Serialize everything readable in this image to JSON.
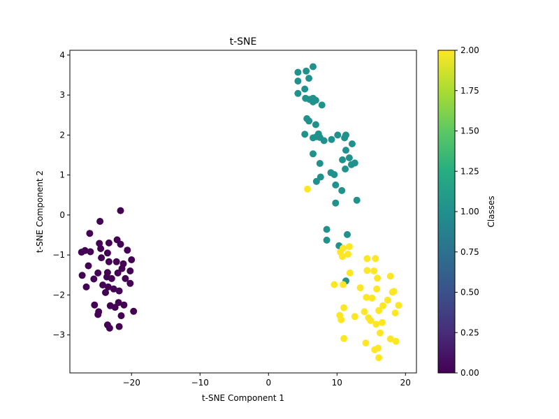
{
  "chart_data": {
    "type": "scatter",
    "title": "t-SNE",
    "xlabel": "t-SNE Component 1",
    "ylabel": "t-SNE Component 2",
    "xlim": [
      -29,
      21.6
    ],
    "ylim": [
      -3.95,
      4.12
    ],
    "xticks": [
      -20,
      -10,
      0,
      10,
      20
    ],
    "xtick_labels": [
      "−20",
      "−10",
      "0",
      "10",
      "20"
    ],
    "yticks": [
      -3,
      -2,
      -1,
      0,
      1,
      2,
      3,
      4
    ],
    "ytick_labels": [
      "−3",
      "−2",
      "−1",
      "0",
      "1",
      "2",
      "3",
      "4"
    ],
    "grid": false,
    "colormap": "viridis",
    "colorbar": {
      "label": "Classes",
      "range": [
        0.0,
        2.0
      ],
      "ticks": [
        0.0,
        0.25,
        0.5,
        0.75,
        1.0,
        1.25,
        1.5,
        1.75,
        2.0
      ],
      "tick_labels": [
        "0.00",
        "0.25",
        "0.50",
        "0.75",
        "1.00",
        "1.25",
        "1.50",
        "1.75",
        "2.00"
      ]
    },
    "class_colors": {
      "0": "#440154",
      "1": "#21918c",
      "2": "#fde725"
    },
    "points": [
      {
        "x": -24.6,
        "y": -0.16,
        "c": 0
      },
      {
        "x": -21.6,
        "y": 0.11,
        "c": 0
      },
      {
        "x": -26.1,
        "y": -0.46,
        "c": 0
      },
      {
        "x": -27.3,
        "y": -0.93,
        "c": 0
      },
      {
        "x": -26.8,
        "y": -0.89,
        "c": 0
      },
      {
        "x": -26.0,
        "y": -0.92,
        "c": 0
      },
      {
        "x": -24.7,
        "y": -0.71,
        "c": 0
      },
      {
        "x": -24.5,
        "y": -0.84,
        "c": 0
      },
      {
        "x": -23.3,
        "y": -0.7,
        "c": 0
      },
      {
        "x": -22.1,
        "y": -0.62,
        "c": 0
      },
      {
        "x": -21.6,
        "y": -0.73,
        "c": 0
      },
      {
        "x": -20.6,
        "y": -0.88,
        "c": 0
      },
      {
        "x": -23.5,
        "y": -0.95,
        "c": 0
      },
      {
        "x": -24.4,
        "y": -1.07,
        "c": 0
      },
      {
        "x": -23.3,
        "y": -1.17,
        "c": 0
      },
      {
        "x": -22.2,
        "y": -1.17,
        "c": 0
      },
      {
        "x": -21.2,
        "y": -1.22,
        "c": 0
      },
      {
        "x": -20.0,
        "y": -1.12,
        "c": 0
      },
      {
        "x": -26.3,
        "y": -1.27,
        "c": 0
      },
      {
        "x": -27.2,
        "y": -1.51,
        "c": 0
      },
      {
        "x": -24.9,
        "y": -1.45,
        "c": 0
      },
      {
        "x": -23.5,
        "y": -1.44,
        "c": 0
      },
      {
        "x": -22.0,
        "y": -1.45,
        "c": 0
      },
      {
        "x": -21.4,
        "y": -1.34,
        "c": 0
      },
      {
        "x": -20.2,
        "y": -1.4,
        "c": 0
      },
      {
        "x": -25.5,
        "y": -1.6,
        "c": 0
      },
      {
        "x": -23.6,
        "y": -1.55,
        "c": 0
      },
      {
        "x": -22.9,
        "y": -1.59,
        "c": 0
      },
      {
        "x": -20.9,
        "y": -1.59,
        "c": 0
      },
      {
        "x": -26.6,
        "y": -1.8,
        "c": 0
      },
      {
        "x": -24.2,
        "y": -1.75,
        "c": 0
      },
      {
        "x": -23.4,
        "y": -1.8,
        "c": 0
      },
      {
        "x": -22.6,
        "y": -1.85,
        "c": 0
      },
      {
        "x": -20.2,
        "y": -1.71,
        "c": 0
      },
      {
        "x": -23.8,
        "y": -1.94,
        "c": 0
      },
      {
        "x": -21.8,
        "y": -1.9,
        "c": 0
      },
      {
        "x": -25.4,
        "y": -2.25,
        "c": 0
      },
      {
        "x": -23.1,
        "y": -2.27,
        "c": 0
      },
      {
        "x": -22.4,
        "y": -2.31,
        "c": 0
      },
      {
        "x": -21.9,
        "y": -2.19,
        "c": 0
      },
      {
        "x": -21.1,
        "y": -2.25,
        "c": 0
      },
      {
        "x": -24.8,
        "y": -2.42,
        "c": 0
      },
      {
        "x": -24.9,
        "y": -2.49,
        "c": 0
      },
      {
        "x": -21.5,
        "y": -2.52,
        "c": 0
      },
      {
        "x": -19.7,
        "y": -2.41,
        "c": 0
      },
      {
        "x": -23.5,
        "y": -2.75,
        "c": 0
      },
      {
        "x": -23.2,
        "y": -2.83,
        "c": 0
      },
      {
        "x": -21.8,
        "y": -2.79,
        "c": 0
      },
      {
        "x": 6.5,
        "y": 3.71,
        "c": 1
      },
      {
        "x": 4.3,
        "y": 3.57,
        "c": 1
      },
      {
        "x": 5.5,
        "y": 3.6,
        "c": 1
      },
      {
        "x": 4.3,
        "y": 3.35,
        "c": 1
      },
      {
        "x": 5.9,
        "y": 3.42,
        "c": 1
      },
      {
        "x": 5.3,
        "y": 3.15,
        "c": 1
      },
      {
        "x": 4.3,
        "y": 3.04,
        "c": 1
      },
      {
        "x": 5.4,
        "y": 2.92,
        "c": 1
      },
      {
        "x": 6.0,
        "y": 2.89,
        "c": 1
      },
      {
        "x": 6.5,
        "y": 2.92,
        "c": 1
      },
      {
        "x": 6.5,
        "y": 2.83,
        "c": 1
      },
      {
        "x": 6.9,
        "y": 2.87,
        "c": 1
      },
      {
        "x": 7.8,
        "y": 2.75,
        "c": 1
      },
      {
        "x": 5.6,
        "y": 2.41,
        "c": 1
      },
      {
        "x": 5.9,
        "y": 2.35,
        "c": 1
      },
      {
        "x": 6.9,
        "y": 2.26,
        "c": 1
      },
      {
        "x": 5.3,
        "y": 2.02,
        "c": 1
      },
      {
        "x": 6.5,
        "y": 1.93,
        "c": 1
      },
      {
        "x": 7.0,
        "y": 1.96,
        "c": 1
      },
      {
        "x": 7.3,
        "y": 2.03,
        "c": 1
      },
      {
        "x": 7.5,
        "y": 1.94,
        "c": 1
      },
      {
        "x": 8.1,
        "y": 1.86,
        "c": 1
      },
      {
        "x": 9.2,
        "y": 1.89,
        "c": 1
      },
      {
        "x": 10.1,
        "y": 2.0,
        "c": 1
      },
      {
        "x": 11.1,
        "y": 1.93,
        "c": 1
      },
      {
        "x": 11.3,
        "y": 2.0,
        "c": 1
      },
      {
        "x": 12.2,
        "y": 1.78,
        "c": 1
      },
      {
        "x": 11.3,
        "y": 1.62,
        "c": 1
      },
      {
        "x": 6.5,
        "y": 1.53,
        "c": 1
      },
      {
        "x": 10.8,
        "y": 1.38,
        "c": 1
      },
      {
        "x": 11.8,
        "y": 1.43,
        "c": 1
      },
      {
        "x": 7.5,
        "y": 1.29,
        "c": 1
      },
      {
        "x": 12.1,
        "y": 1.26,
        "c": 1
      },
      {
        "x": 12.6,
        "y": 1.3,
        "c": 1
      },
      {
        "x": 11.2,
        "y": 1.15,
        "c": 1
      },
      {
        "x": 9.1,
        "y": 1.06,
        "c": 1
      },
      {
        "x": 9.6,
        "y": 1.01,
        "c": 1
      },
      {
        "x": 7.6,
        "y": 0.95,
        "c": 1
      },
      {
        "x": 7.0,
        "y": 0.84,
        "c": 1
      },
      {
        "x": 9.8,
        "y": 0.75,
        "c": 1
      },
      {
        "x": 10.7,
        "y": 0.61,
        "c": 1
      },
      {
        "x": 12.9,
        "y": 0.37,
        "c": 1
      },
      {
        "x": 9.8,
        "y": 0.3,
        "c": 1
      },
      {
        "x": 8.5,
        "y": -0.36,
        "c": 1
      },
      {
        "x": 11.5,
        "y": -0.49,
        "c": 1
      },
      {
        "x": 8.5,
        "y": -0.63,
        "c": 1
      },
      {
        "x": 10.3,
        "y": -0.77,
        "c": 1
      },
      {
        "x": 11.3,
        "y": -1.65,
        "c": 1
      },
      {
        "x": 5.7,
        "y": 0.65,
        "c": 2
      },
      {
        "x": 10.9,
        "y": -0.83,
        "c": 2
      },
      {
        "x": 11.8,
        "y": -0.79,
        "c": 2
      },
      {
        "x": 10.5,
        "y": -0.93,
        "c": 2
      },
      {
        "x": 11.6,
        "y": -0.98,
        "c": 2
      },
      {
        "x": 10.8,
        "y": -1.04,
        "c": 2
      },
      {
        "x": 14.4,
        "y": -1.09,
        "c": 2
      },
      {
        "x": 15.6,
        "y": -1.09,
        "c": 2
      },
      {
        "x": 14.4,
        "y": -1.39,
        "c": 2
      },
      {
        "x": 15.4,
        "y": -1.4,
        "c": 2
      },
      {
        "x": 11.9,
        "y": -1.45,
        "c": 2
      },
      {
        "x": 15.9,
        "y": -1.58,
        "c": 2
      },
      {
        "x": 17.8,
        "y": -1.53,
        "c": 2
      },
      {
        "x": 9.6,
        "y": -1.74,
        "c": 2
      },
      {
        "x": 10.9,
        "y": -1.74,
        "c": 2
      },
      {
        "x": 13.4,
        "y": -1.82,
        "c": 2
      },
      {
        "x": 15.8,
        "y": -1.85,
        "c": 2
      },
      {
        "x": 18.1,
        "y": -1.93,
        "c": 2
      },
      {
        "x": 18.3,
        "y": -1.91,
        "c": 2
      },
      {
        "x": 14.3,
        "y": -2.06,
        "c": 2
      },
      {
        "x": 15.1,
        "y": -2.08,
        "c": 2
      },
      {
        "x": 17.4,
        "y": -2.13,
        "c": 2
      },
      {
        "x": 11.0,
        "y": -2.32,
        "c": 2
      },
      {
        "x": 16.7,
        "y": -2.27,
        "c": 2
      },
      {
        "x": 19.0,
        "y": -2.26,
        "c": 2
      },
      {
        "x": 14.0,
        "y": -2.42,
        "c": 2
      },
      {
        "x": 16.1,
        "y": -2.39,
        "c": 2
      },
      {
        "x": 18.5,
        "y": -2.45,
        "c": 2
      },
      {
        "x": 10.4,
        "y": -2.51,
        "c": 2
      },
      {
        "x": 12.6,
        "y": -2.54,
        "c": 2
      },
      {
        "x": 14.6,
        "y": -2.57,
        "c": 2
      },
      {
        "x": 10.6,
        "y": -2.62,
        "c": 2
      },
      {
        "x": 14.9,
        "y": -2.64,
        "c": 2
      },
      {
        "x": 16.6,
        "y": -2.69,
        "c": 2
      },
      {
        "x": 15.7,
        "y": -2.73,
        "c": 2
      },
      {
        "x": 16.3,
        "y": -2.95,
        "c": 2
      },
      {
        "x": 17.8,
        "y": -3.1,
        "c": 2
      },
      {
        "x": 11.0,
        "y": -3.09,
        "c": 2
      },
      {
        "x": 18.6,
        "y": -3.16,
        "c": 2
      },
      {
        "x": 14.2,
        "y": -3.2,
        "c": 2
      },
      {
        "x": 16.0,
        "y": -3.33,
        "c": 2
      },
      {
        "x": 15.5,
        "y": -3.37,
        "c": 2
      },
      {
        "x": 16.1,
        "y": -3.57,
        "c": 2
      }
    ]
  }
}
